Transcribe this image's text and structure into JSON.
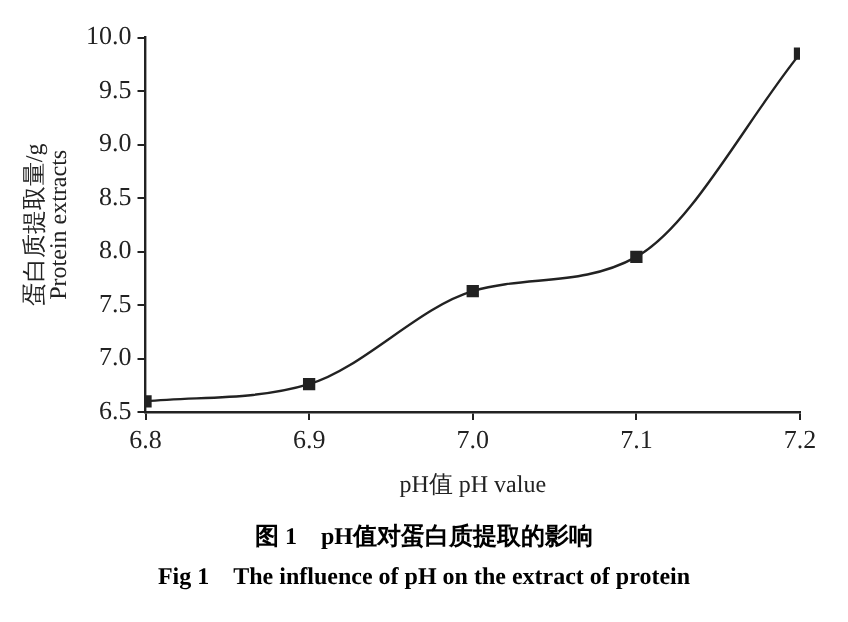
{
  "chart_data": {
    "type": "line",
    "title": "图 1　pH值对蛋白质提取的影响",
    "subtitle": "Fig 1　The influence of pH on the extract of protein",
    "xlabel": "pH值 pH value",
    "ylabel": "蛋白质提取量/g\nProtein extracts",
    "x": [
      6.8,
      6.9,
      7.0,
      7.1,
      7.2
    ],
    "series": [
      {
        "color": "#222222",
        "values": [
          6.6,
          6.76,
          7.63,
          7.95,
          9.85
        ]
      }
    ],
    "xlim": [
      6.8,
      7.2
    ],
    "xticks": [
      {
        "value": 6.8,
        "label": "6.8"
      },
      {
        "value": 6.9,
        "label": "6.9"
      },
      {
        "value": 7.0,
        "label": "7.0"
      },
      {
        "value": 7.1,
        "label": "7.1"
      },
      {
        "value": 7.2,
        "label": "7.2"
      }
    ],
    "ylim": [
      6.5,
      10.0
    ],
    "yticks": [
      {
        "value": 6.5,
        "label": "6.5"
      },
      {
        "value": 7.0,
        "label": "7.0"
      },
      {
        "value": 7.5,
        "label": "7.5"
      },
      {
        "value": 8.0,
        "label": "8.0"
      },
      {
        "value": 8.5,
        "label": "8.5"
      },
      {
        "value": 9.0,
        "label": "9.0"
      },
      {
        "value": 9.5,
        "label": "9.5"
      },
      {
        "value": 10.0,
        "label": "10.0"
      }
    ],
    "marker": "square",
    "grid": false,
    "legend": false
  }
}
